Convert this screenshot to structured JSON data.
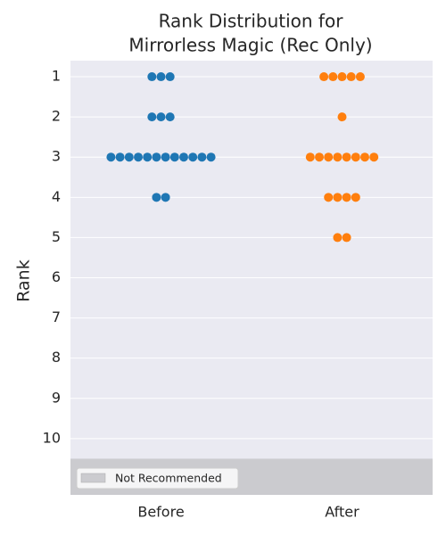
{
  "chart_data": {
    "type": "swarm",
    "title": [
      "Rank Distribution for",
      "Mirrorless Magic (Rec Only)"
    ],
    "ylabel": "Rank",
    "categories": [
      "Before",
      "After"
    ],
    "values": [
      [
        1,
        1,
        1,
        2,
        2,
        2,
        3,
        3,
        3,
        3,
        3,
        3,
        3,
        3,
        3,
        3,
        3,
        3,
        4,
        4
      ],
      [
        1,
        1,
        1,
        1,
        1,
        2,
        3,
        3,
        3,
        3,
        3,
        3,
        3,
        3,
        4,
        4,
        4,
        4,
        5,
        5
      ]
    ],
    "colors": [
      "#1f77b4",
      "#ff7f0e"
    ],
    "ylim": [
      11.4,
      0.6
    ],
    "yticks": [
      1,
      2,
      3,
      4,
      5,
      6,
      7,
      8,
      9,
      10
    ],
    "grid": true,
    "shaded_region": {
      "label": "Not Recommended",
      "start": 10.5,
      "color": "#cbcbcf"
    },
    "legend": "lower left"
  }
}
